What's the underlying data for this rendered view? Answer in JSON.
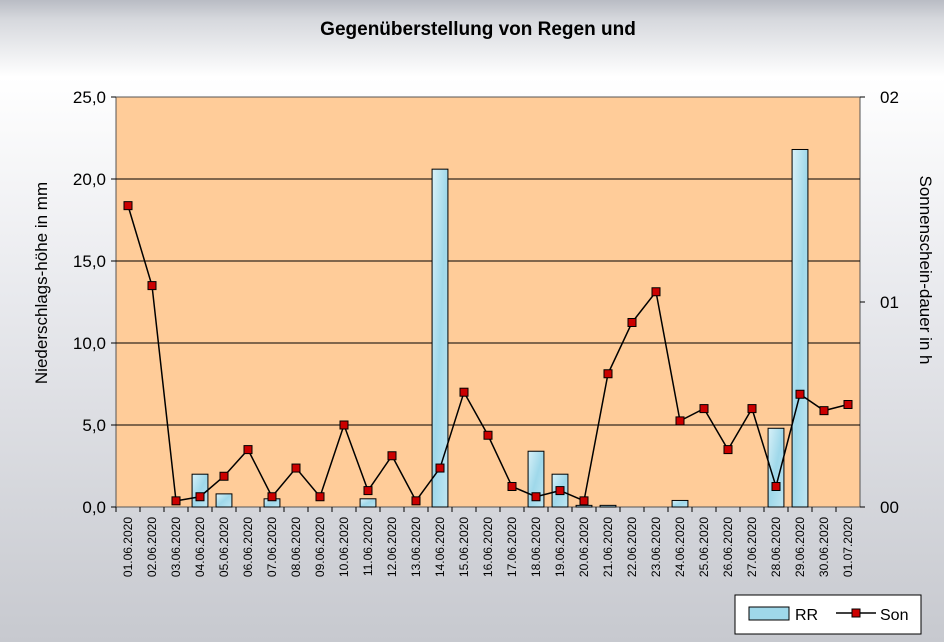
{
  "chart_data": {
    "type": "bar+line",
    "title": "Gegenüberstellung von Regen und",
    "categories": [
      "01.06.2020",
      "02.06.2020",
      "03.06.2020",
      "04.06.2020",
      "05.06.2020",
      "06.06.2020",
      "07.06.2020",
      "08.06.2020",
      "09.06.2020",
      "10.06.2020",
      "11.06.2020",
      "12.06.2020",
      "13.06.2020",
      "14.06.2020",
      "15.06.2020",
      "16.06.2020",
      "17.06.2020",
      "18.06.2020",
      "19.06.2020",
      "20.06.2020",
      "21.06.2020",
      "22.06.2020",
      "23.06.2020",
      "24.06.2020",
      "25.06.2020",
      "26.06.2020",
      "27.06.2020",
      "28.06.2020",
      "29.06.2020",
      "30.06.2020",
      "01.07.2020"
    ],
    "y_left": {
      "label": "Niederschlags-höhe in mm",
      "min": 0,
      "max": 25,
      "step": 5,
      "tick_labels": [
        "0,0",
        "5,0",
        "10,0",
        "15,0",
        "20,0",
        "25,0"
      ]
    },
    "y_right": {
      "label": "Sonnenschein-dauer in h",
      "min": 0,
      "max": 0.2,
      "tick_values": [
        0,
        0.1,
        0.2
      ],
      "tick_labels": [
        "00",
        "01",
        "02"
      ]
    },
    "series": [
      {
        "name": "RR",
        "type": "bar",
        "axis": "left",
        "color": "#9fd8ea",
        "values": [
          0,
          0,
          0,
          2.0,
          0.8,
          0,
          0.5,
          0,
          0,
          0,
          0.5,
          0,
          0,
          20.6,
          0,
          0,
          0,
          3.4,
          2.0,
          0.1,
          0.1,
          0,
          0,
          0.4,
          0,
          0,
          0,
          4.8,
          21.8,
          0,
          0
        ]
      },
      {
        "name": "Son",
        "type": "line",
        "axis": "right",
        "color": "#000000",
        "marker_color": "#cc0000",
        "values": [
          0.147,
          0.108,
          0.003,
          0.005,
          0.015,
          0.028,
          0.005,
          0.019,
          0.005,
          0.04,
          0.008,
          0.025,
          0.003,
          0.019,
          0.056,
          0.035,
          0.01,
          0.005,
          0.008,
          0.003,
          0.065,
          0.09,
          0.105,
          0.042,
          0.048,
          0.028,
          0.048,
          0.01,
          0.055,
          0.047,
          0.05
        ]
      }
    ],
    "grid": true,
    "legend_position": "bottom-right",
    "plot_background": "#ffcc99"
  }
}
